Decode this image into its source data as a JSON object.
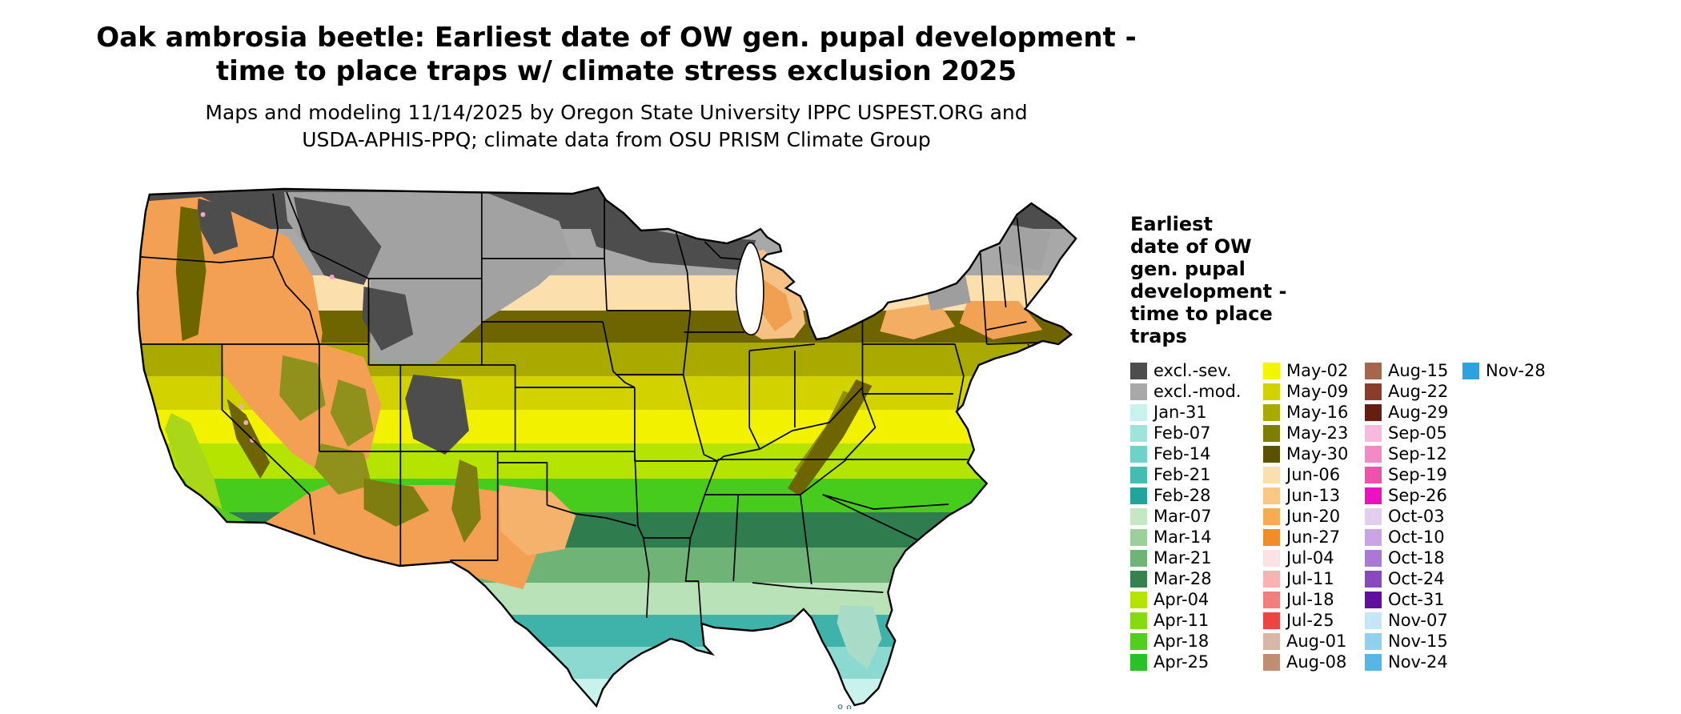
{
  "header": {
    "title_line1": "Oak ambrosia beetle: Earliest date of OW gen. pupal development -",
    "title_line2": "time to place traps w/ climate stress exclusion 2025",
    "subtitle_line1": "Maps and modeling 11/14/2025 by Oregon State University IPPC USPEST.ORG and",
    "subtitle_line2": "USDA-APHIS-PPQ; climate data from OSU PRISM Climate Group"
  },
  "legend": {
    "title_lines": [
      "Earliest",
      "date of OW",
      "gen. pupal",
      "development -",
      "time to place",
      "traps"
    ],
    "columns": [
      [
        {
          "label": "excl.-sev.",
          "color": "#4d4d4d"
        },
        {
          "label": "excl.-mod.",
          "color": "#a8a8a8"
        },
        {
          "label": "Jan-31",
          "color": "#c9f2ec"
        },
        {
          "label": "Feb-07",
          "color": "#9fe3dc"
        },
        {
          "label": "Feb-14",
          "color": "#6fd1c8"
        },
        {
          "label": "Feb-21",
          "color": "#45bcb2"
        },
        {
          "label": "Feb-28",
          "color": "#21a59a"
        },
        {
          "label": "Mar-07",
          "color": "#c4e8c4"
        },
        {
          "label": "Mar-14",
          "color": "#9ccf9c"
        },
        {
          "label": "Mar-21",
          "color": "#6fb377"
        },
        {
          "label": "Mar-28",
          "color": "#35824f"
        },
        {
          "label": "Apr-04",
          "color": "#b4e400"
        },
        {
          "label": "Apr-11",
          "color": "#86da12"
        },
        {
          "label": "Apr-18",
          "color": "#50cf1e"
        },
        {
          "label": "Apr-25",
          "color": "#28c228"
        }
      ],
      [
        {
          "label": "May-02",
          "color": "#f5f500"
        },
        {
          "label": "May-09",
          "color": "#d2d200"
        },
        {
          "label": "May-16",
          "color": "#a9a900"
        },
        {
          "label": "May-23",
          "color": "#7e7e00"
        },
        {
          "label": "May-30",
          "color": "#5a5200"
        },
        {
          "label": "Jun-06",
          "color": "#fbdfad"
        },
        {
          "label": "Jun-13",
          "color": "#f9c984"
        },
        {
          "label": "Jun-20",
          "color": "#f8ab52"
        },
        {
          "label": "Jun-27",
          "color": "#f18c2a"
        },
        {
          "label": "Jul-04",
          "color": "#fbe3e3"
        },
        {
          "label": "Jul-11",
          "color": "#f7b2b2"
        },
        {
          "label": "Jul-18",
          "color": "#f27e7e"
        },
        {
          "label": "Jul-25",
          "color": "#ee4444"
        },
        {
          "label": "Aug-01",
          "color": "#d9b6a6"
        },
        {
          "label": "Aug-08",
          "color": "#c18e74"
        }
      ],
      [
        {
          "label": "Aug-15",
          "color": "#a5664b"
        },
        {
          "label": "Aug-22",
          "color": "#8a3d2a"
        },
        {
          "label": "Aug-29",
          "color": "#651f12"
        },
        {
          "label": "Sep-05",
          "color": "#f9b9df"
        },
        {
          "label": "Sep-12",
          "color": "#f489c8"
        },
        {
          "label": "Sep-19",
          "color": "#ef51af"
        },
        {
          "label": "Sep-26",
          "color": "#ec12c1"
        },
        {
          "label": "Oct-03",
          "color": "#e4cef0"
        },
        {
          "label": "Oct-10",
          "color": "#caa4e4"
        },
        {
          "label": "Oct-18",
          "color": "#a979d3"
        },
        {
          "label": "Oct-24",
          "color": "#8848be"
        },
        {
          "label": "Oct-31",
          "color": "#60109f"
        },
        {
          "label": "Nov-07",
          "color": "#c4e7f8"
        },
        {
          "label": "Nov-15",
          "color": "#91d1f0"
        },
        {
          "label": "Nov-24",
          "color": "#56b6e6"
        }
      ],
      [
        {
          "label": "Nov-28",
          "color": "#2aa4de"
        }
      ]
    ]
  }
}
